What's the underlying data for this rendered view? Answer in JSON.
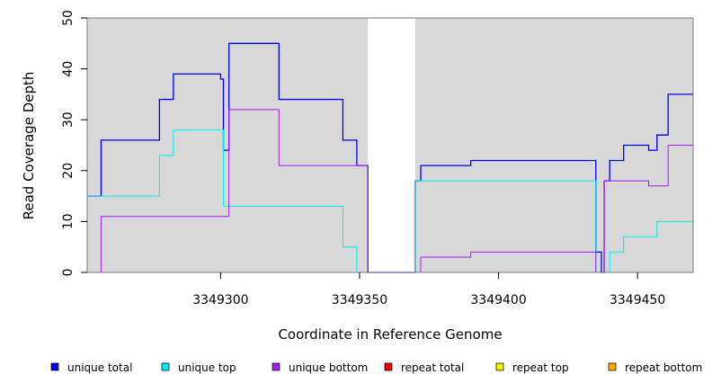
{
  "chart_data": {
    "type": "line",
    "xlabel": "Coordinate in Reference Genome",
    "ylabel": "Read Coverage Depth",
    "xlim": [
      3349252,
      3349470
    ],
    "ylim": [
      0,
      50
    ],
    "x_ticks": [
      3349300,
      3349350,
      3349400,
      3349450
    ],
    "x_tick_labels": [
      "3349300",
      "3349350",
      "3349400",
      "3349450"
    ],
    "y_ticks": [
      0,
      10,
      20,
      30,
      40,
      50
    ],
    "y_tick_labels": [
      "0",
      "10",
      "20",
      "30",
      "40",
      "50"
    ],
    "background_color": "#d8d8d8",
    "gap_regions": [
      [
        3349353,
        3349370
      ]
    ],
    "legend_position": "bottom",
    "series": [
      {
        "name": "unique total",
        "color": "#0000ee",
        "points": [
          [
            3349252,
            15
          ],
          [
            3349257,
            15
          ],
          [
            3349257,
            26
          ],
          [
            3349278,
            26
          ],
          [
            3349278,
            34
          ],
          [
            3349283,
            34
          ],
          [
            3349283,
            39
          ],
          [
            3349300,
            39
          ],
          [
            3349300,
            38
          ],
          [
            3349301,
            38
          ],
          [
            3349301,
            24
          ],
          [
            3349303,
            24
          ],
          [
            3349303,
            45
          ],
          [
            3349321,
            45
          ],
          [
            3349321,
            34
          ],
          [
            3349344,
            34
          ],
          [
            3349344,
            26
          ],
          [
            3349349,
            26
          ],
          [
            3349349,
            21
          ],
          [
            3349353,
            21
          ],
          [
            3349353,
            0
          ],
          [
            3349370,
            0
          ],
          [
            3349370,
            18
          ],
          [
            3349372,
            18
          ],
          [
            3349372,
            21
          ],
          [
            3349390,
            21
          ],
          [
            3349390,
            22
          ],
          [
            3349435,
            22
          ],
          [
            3349435,
            4
          ],
          [
            3349437,
            4
          ],
          [
            3349437,
            0
          ],
          [
            3349438,
            0
          ],
          [
            3349438,
            18
          ],
          [
            3349440,
            18
          ],
          [
            3349440,
            22
          ],
          [
            3349445,
            22
          ],
          [
            3349445,
            25
          ],
          [
            3349454,
            25
          ],
          [
            3349454,
            24
          ],
          [
            3349457,
            24
          ],
          [
            3349457,
            27
          ],
          [
            3349461,
            27
          ],
          [
            3349461,
            35
          ],
          [
            3349470,
            35
          ]
        ]
      },
      {
        "name": "unique top",
        "color": "#00eeee",
        "points": [
          [
            3349252,
            15
          ],
          [
            3349278,
            15
          ],
          [
            3349278,
            23
          ],
          [
            3349283,
            23
          ],
          [
            3349283,
            28
          ],
          [
            3349301,
            28
          ],
          [
            3349301,
            13
          ],
          [
            3349344,
            13
          ],
          [
            3349344,
            5
          ],
          [
            3349349,
            5
          ],
          [
            3349349,
            0
          ],
          [
            3349370,
            0
          ],
          [
            3349370,
            18
          ],
          [
            3349435,
            18
          ],
          [
            3349435,
            0
          ],
          [
            3349440,
            0
          ],
          [
            3349440,
            4
          ],
          [
            3349445,
            4
          ],
          [
            3349445,
            7
          ],
          [
            3349457,
            7
          ],
          [
            3349457,
            10
          ],
          [
            3349470,
            10
          ]
        ]
      },
      {
        "name": "unique bottom",
        "color": "#a020f0",
        "points": [
          [
            3349252,
            0
          ],
          [
            3349257,
            0
          ],
          [
            3349257,
            11
          ],
          [
            3349303,
            11
          ],
          [
            3349303,
            32
          ],
          [
            3349321,
            32
          ],
          [
            3349321,
            21
          ],
          [
            3349353,
            21
          ],
          [
            3349353,
            0
          ],
          [
            3349372,
            0
          ],
          [
            3349372,
            3
          ],
          [
            3349390,
            3
          ],
          [
            3349390,
            4
          ],
          [
            3349435,
            4
          ],
          [
            3349435,
            0
          ],
          [
            3349438,
            0
          ],
          [
            3349438,
            18
          ],
          [
            3349454,
            18
          ],
          [
            3349454,
            17
          ],
          [
            3349461,
            17
          ],
          [
            3349461,
            25
          ],
          [
            3349470,
            25
          ]
        ]
      },
      {
        "name": "repeat total",
        "color": "#ee0000",
        "points": [
          [
            3349252,
            0
          ],
          [
            3349470,
            0
          ]
        ]
      },
      {
        "name": "repeat top",
        "color": "#eeee00",
        "points": [
          [
            3349252,
            0
          ],
          [
            3349470,
            0
          ]
        ]
      },
      {
        "name": "repeat bottom",
        "color": "#ffa500",
        "points": [
          [
            3349252,
            0
          ],
          [
            3349470,
            0
          ]
        ]
      }
    ]
  }
}
